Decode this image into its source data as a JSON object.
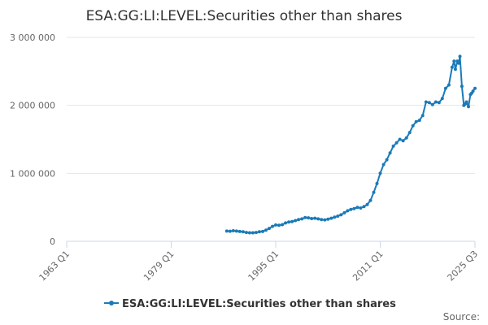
{
  "chart_data": {
    "type": "line",
    "title": "ESA:GG:LI:LEVEL:Securities other than shares",
    "xlabel": "",
    "ylabel": "",
    "ylim": [
      0,
      3000000
    ],
    "yticks": [
      {
        "value": 0,
        "label": "0"
      },
      {
        "value": 1000000,
        "label": "1 000 000"
      },
      {
        "value": 2000000,
        "label": "2 000 000"
      },
      {
        "value": 3000000,
        "label": "3 000 000"
      }
    ],
    "xlim": [
      1963.0,
      2025.5
    ],
    "xticks": [
      {
        "value": 1963.0,
        "label": "1963 Q1"
      },
      {
        "value": 1979.0,
        "label": "1979 Q1"
      },
      {
        "value": 1995.0,
        "label": "1995 Q1"
      },
      {
        "value": 2011.0,
        "label": "2011 Q1"
      },
      {
        "value": 2025.5,
        "label": "2025 Q3"
      }
    ],
    "grid": true,
    "legend_position": "bottom",
    "source_label": "Source:",
    "series_color": "#1a7ab8",
    "series": [
      {
        "name": "ESA:GG:LI:LEVEL:Securities other than shares",
        "points": [
          [
            1987.5,
            150000
          ],
          [
            1988.0,
            148000
          ],
          [
            1988.5,
            155000
          ],
          [
            1989.0,
            150000
          ],
          [
            1989.5,
            145000
          ],
          [
            1990.0,
            140000
          ],
          [
            1990.5,
            130000
          ],
          [
            1991.0,
            125000
          ],
          [
            1991.5,
            125000
          ],
          [
            1992.0,
            130000
          ],
          [
            1992.5,
            140000
          ],
          [
            1993.0,
            145000
          ],
          [
            1993.5,
            165000
          ],
          [
            1994.0,
            190000
          ],
          [
            1994.5,
            220000
          ],
          [
            1995.0,
            240000
          ],
          [
            1995.5,
            235000
          ],
          [
            1996.0,
            245000
          ],
          [
            1996.5,
            270000
          ],
          [
            1997.0,
            285000
          ],
          [
            1997.5,
            290000
          ],
          [
            1998.0,
            305000
          ],
          [
            1998.5,
            320000
          ],
          [
            1999.0,
            330000
          ],
          [
            1999.5,
            350000
          ],
          [
            2000.0,
            345000
          ],
          [
            2000.5,
            335000
          ],
          [
            2001.0,
            340000
          ],
          [
            2001.5,
            330000
          ],
          [
            2002.0,
            320000
          ],
          [
            2002.5,
            315000
          ],
          [
            2003.0,
            325000
          ],
          [
            2003.5,
            340000
          ],
          [
            2004.0,
            355000
          ],
          [
            2004.5,
            370000
          ],
          [
            2005.0,
            390000
          ],
          [
            2005.5,
            420000
          ],
          [
            2006.0,
            450000
          ],
          [
            2006.5,
            470000
          ],
          [
            2007.0,
            480000
          ],
          [
            2007.5,
            500000
          ],
          [
            2008.0,
            490000
          ],
          [
            2008.5,
            510000
          ],
          [
            2009.0,
            540000
          ],
          [
            2009.5,
            600000
          ],
          [
            2010.0,
            720000
          ],
          [
            2010.5,
            850000
          ],
          [
            2011.0,
            1000000
          ],
          [
            2011.5,
            1130000
          ],
          [
            2012.0,
            1200000
          ],
          [
            2012.5,
            1300000
          ],
          [
            2013.0,
            1400000
          ],
          [
            2013.5,
            1450000
          ],
          [
            2014.0,
            1500000
          ],
          [
            2014.5,
            1480000
          ],
          [
            2015.0,
            1520000
          ],
          [
            2015.5,
            1600000
          ],
          [
            2016.0,
            1700000
          ],
          [
            2016.5,
            1760000
          ],
          [
            2017.0,
            1780000
          ],
          [
            2017.5,
            1850000
          ],
          [
            2018.0,
            2050000
          ],
          [
            2018.5,
            2040000
          ],
          [
            2019.0,
            2010000
          ],
          [
            2019.5,
            2050000
          ],
          [
            2020.0,
            2040000
          ],
          [
            2020.5,
            2100000
          ],
          [
            2021.0,
            2250000
          ],
          [
            2021.5,
            2300000
          ],
          [
            2022.0,
            2560000
          ],
          [
            2022.3,
            2650000
          ],
          [
            2022.5,
            2530000
          ],
          [
            2022.8,
            2650000
          ],
          [
            2023.0,
            2620000
          ],
          [
            2023.2,
            2720000
          ],
          [
            2023.5,
            2280000
          ],
          [
            2023.8,
            2000000
          ],
          [
            2024.0,
            2020000
          ],
          [
            2024.2,
            2050000
          ],
          [
            2024.5,
            1980000
          ],
          [
            2024.8,
            2160000
          ],
          [
            2025.0,
            2180000
          ],
          [
            2025.2,
            2210000
          ],
          [
            2025.5,
            2250000
          ]
        ]
      }
    ]
  }
}
